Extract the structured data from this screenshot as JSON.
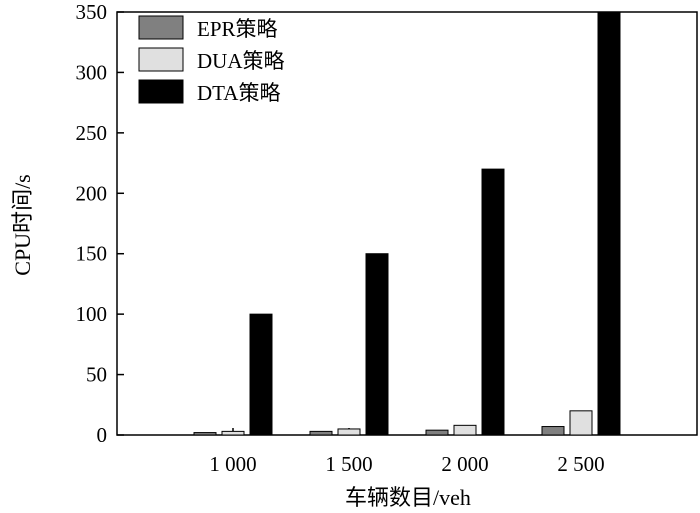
{
  "chart_data": {
    "type": "bar",
    "categories": [
      "1 000",
      "1 500",
      "2 000",
      "2 500"
    ],
    "series": [
      {
        "name": "EPR策略",
        "color": "#808080",
        "values": [
          2,
          3,
          4,
          7
        ]
      },
      {
        "name": "DUA策略",
        "color": "#e0e0e0",
        "values": [
          3,
          5,
          8,
          20
        ]
      },
      {
        "name": "DTA策略",
        "color": "#000000",
        "values": [
          100,
          150,
          220,
          350
        ]
      }
    ],
    "xlabel": "车辆数目/veh",
    "ylabel": "CPU时间/s",
    "ylim": [
      0,
      350
    ],
    "yticks": [
      "0",
      "50",
      "100",
      "150",
      "200",
      "250",
      "300",
      "350"
    ],
    "grid": false,
    "legend_position": "top-left"
  }
}
